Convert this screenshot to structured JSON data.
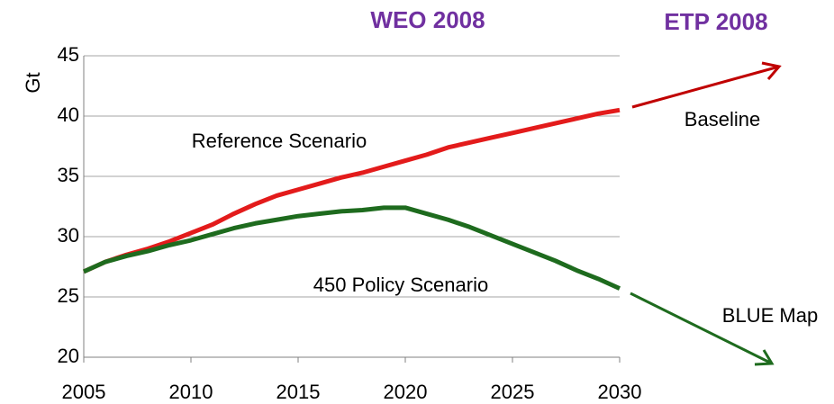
{
  "chart_data": {
    "type": "line",
    "title": "WEO 2008",
    "subtitle": "ETP 2008",
    "y_label": "Gt",
    "annotations": [
      "Reference Scenario",
      "450 Policy Scenario",
      "Baseline",
      "BLUE Map"
    ],
    "x": [
      2005,
      2006,
      2007,
      2008,
      2009,
      2010,
      2011,
      2012,
      2013,
      2014,
      2015,
      2016,
      2017,
      2018,
      2019,
      2020,
      2021,
      2022,
      2023,
      2024,
      2025,
      2026,
      2027,
      2028,
      2029,
      2030
    ],
    "series": [
      {
        "name": "Reference Scenario",
        "color": "#e31b1b",
        "values": [
          27.1,
          27.9,
          28.5,
          29.0,
          29.6,
          30.3,
          31.0,
          31.9,
          32.7,
          33.4,
          33.9,
          34.4,
          34.9,
          35.3,
          35.8,
          36.3,
          36.8,
          37.4,
          37.8,
          38.2,
          38.6,
          39.0,
          39.4,
          39.8,
          40.2,
          40.5
        ]
      },
      {
        "name": "450 Policy Scenario",
        "color": "#1e6b1e",
        "values": [
          27.1,
          27.9,
          28.4,
          28.8,
          29.3,
          29.7,
          30.2,
          30.7,
          31.1,
          31.4,
          31.7,
          31.9,
          32.1,
          32.2,
          32.4,
          32.4,
          31.9,
          31.4,
          30.8,
          30.1,
          29.4,
          28.7,
          28.0,
          27.2,
          26.5,
          25.7
        ]
      }
    ],
    "xlim": [
      2005,
      2030
    ],
    "xticks": [
      2005,
      2010,
      2015,
      2020,
      2025,
      2030
    ],
    "ylim": [
      20,
      45
    ],
    "yticks": [
      20,
      25,
      30,
      35,
      40,
      45
    ],
    "grid": true
  }
}
